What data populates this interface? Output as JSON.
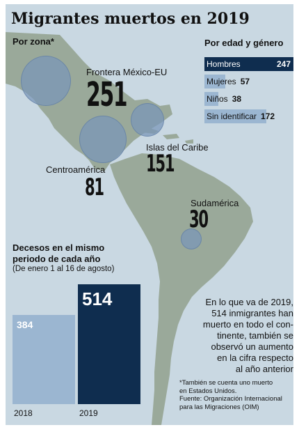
{
  "title": "Migrantes muertos en 2019",
  "zone_section": {
    "heading": "Por zona*"
  },
  "zones": [
    {
      "label": "Frontera México-EU",
      "value": "251"
    },
    {
      "label": "Islas del Caribe",
      "value": "151"
    },
    {
      "label": "Centroamérica",
      "value": "81"
    },
    {
      "label": "Sudamérica",
      "value": "30"
    }
  ],
  "age_gender_section": {
    "heading": "Por edad y género"
  },
  "same_period_section": {
    "heading_line1": "Decesos en el mismo",
    "heading_line2": "periodo de cada año",
    "range": "(De enero 1 al 16 de agosto)"
  },
  "note": {
    "lines": [
      "En lo que va de 2019,",
      "514 inmigrantes han",
      "muerto en todo el con-",
      "tinente, también se",
      "observó un aumento",
      "en la cifra respecto",
      "al año anterior"
    ]
  },
  "footnote": {
    "lines": [
      "*También se cuenta uno muerto",
      "en Estados Unidos.",
      "Fuente: Organización Internacional",
      "para las Migraciones (OIM)"
    ]
  },
  "colors": {
    "ocean": "#c9d8e2",
    "land": "#9aa99a",
    "circle": "#7896b9",
    "dark_navy": "#0f2d4f",
    "light_blue": "#9bb6d1"
  },
  "chart_data": [
    {
      "type": "bar",
      "orientation": "horizontal",
      "title": "Por edad y género",
      "categories": [
        "Hombres",
        "Mujeres",
        "Niños",
        "Sin identificar"
      ],
      "values": [
        247,
        57,
        38,
        172
      ],
      "colors": [
        "#0f2d4f",
        "#9bb6d1",
        "#9bb6d1",
        "#9bb6d1"
      ],
      "xlim": [
        0,
        247
      ]
    },
    {
      "type": "bar",
      "orientation": "vertical",
      "title": "Decesos en el mismo periodo de cada año",
      "categories": [
        "2018",
        "2019"
      ],
      "values": [
        384,
        514
      ],
      "colors": [
        "#9bb6d1",
        "#0f2d4f"
      ],
      "ylim": [
        0,
        514
      ]
    }
  ]
}
